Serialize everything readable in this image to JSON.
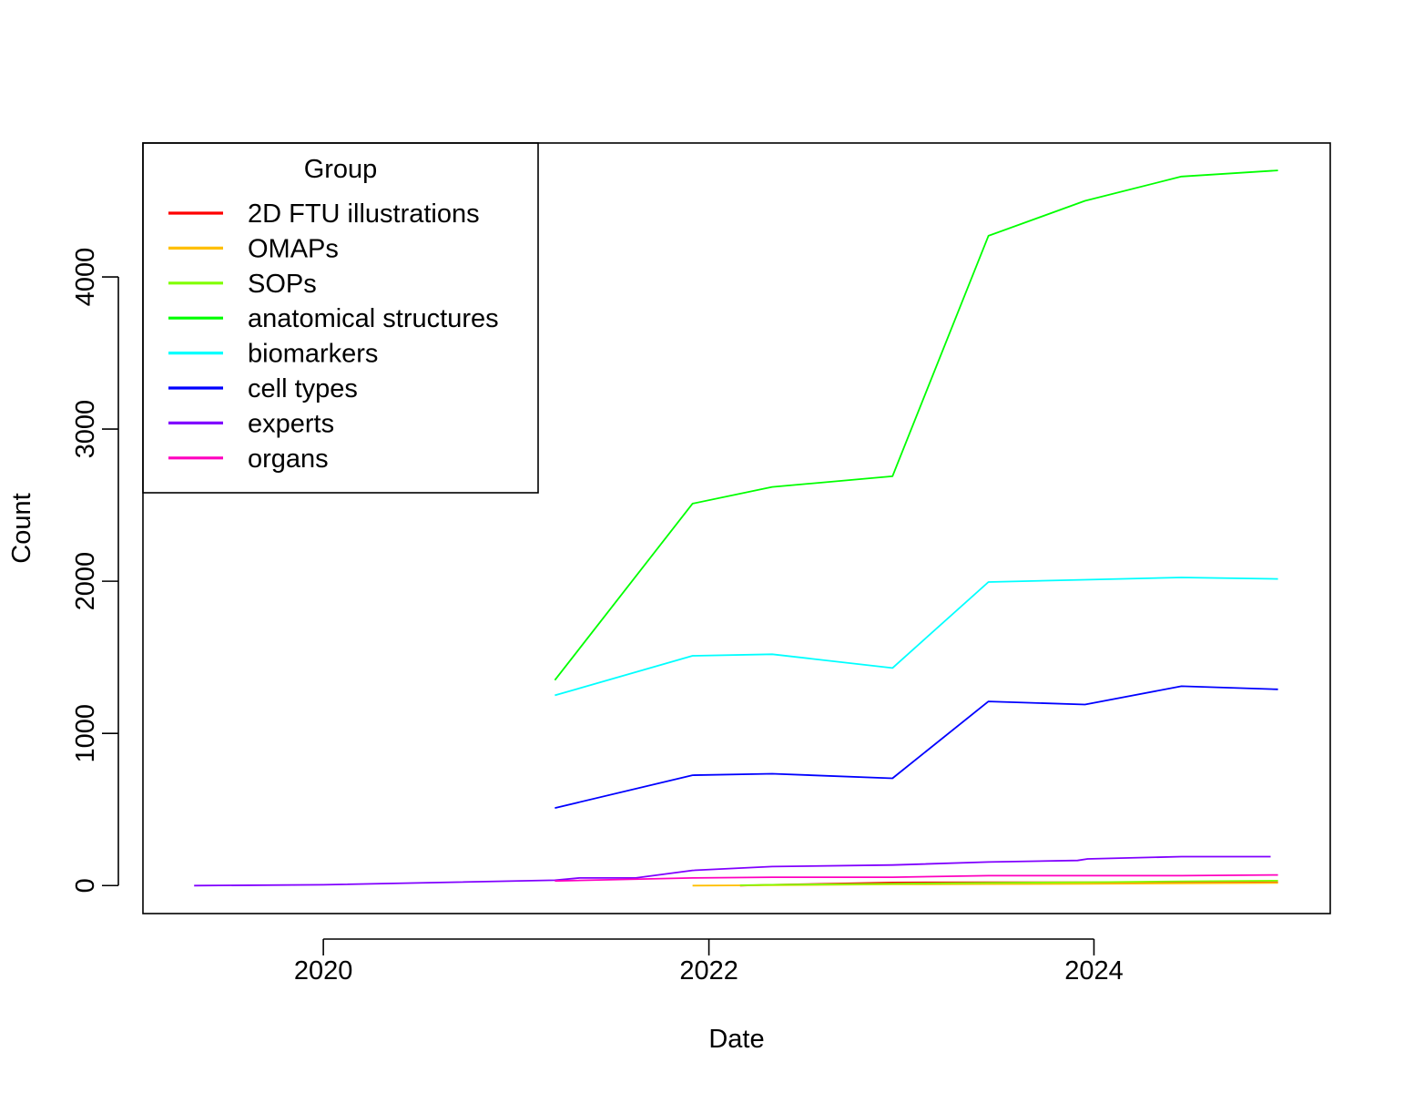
{
  "chart_data": {
    "type": "line",
    "xlabel": "Date",
    "ylabel": "Count",
    "xlim": [
      "2019-01-24",
      "2025-03-24"
    ],
    "ylim": [
      -184,
      4880
    ],
    "xticks": [
      {
        "date": "2020-01-01",
        "label": "2020"
      },
      {
        "date": "2022-01-01",
        "label": "2022"
      },
      {
        "date": "2024-01-01",
        "label": "2024"
      }
    ],
    "yticks": [
      0,
      1000,
      2000,
      3000,
      4000
    ],
    "grid": false,
    "legend": {
      "title": "Group",
      "position": "top-left"
    },
    "series": [
      {
        "name": "2D FTU illustrations",
        "color": "#FF0000",
        "points": [
          [
            "2022-03-01",
            0
          ],
          [
            "2022-05-01",
            5
          ],
          [
            "2022-12-15",
            20
          ],
          [
            "2023-06-15",
            22
          ],
          [
            "2023-12-15",
            22
          ],
          [
            "2024-06-15",
            22
          ],
          [
            "2024-12-15",
            22
          ]
        ]
      },
      {
        "name": "OMAPs",
        "color": "#FFBF00",
        "points": [
          [
            "2021-12-01",
            0
          ],
          [
            "2022-05-01",
            2
          ],
          [
            "2022-12-15",
            8
          ],
          [
            "2023-06-15",
            10
          ],
          [
            "2023-12-15",
            12
          ],
          [
            "2024-06-15",
            15
          ],
          [
            "2024-12-15",
            18
          ]
        ]
      },
      {
        "name": "SOPs",
        "color": "#80FF00",
        "points": [
          [
            "2022-03-01",
            2
          ],
          [
            "2022-05-01",
            5
          ],
          [
            "2022-12-15",
            12
          ],
          [
            "2023-06-15",
            18
          ],
          [
            "2023-12-15",
            22
          ],
          [
            "2024-06-15",
            28
          ],
          [
            "2024-12-15",
            32
          ]
        ]
      },
      {
        "name": "anatomical structures",
        "color": "#00FF00",
        "points": [
          [
            "2021-03-15",
            1350
          ],
          [
            "2021-12-01",
            2510
          ],
          [
            "2022-05-01",
            2620
          ],
          [
            "2022-12-15",
            2690
          ],
          [
            "2023-06-15",
            4270
          ],
          [
            "2023-12-15",
            4500
          ],
          [
            "2024-06-15",
            4660
          ],
          [
            "2024-12-15",
            4700
          ]
        ]
      },
      {
        "name": "biomarkers",
        "color": "#00FFFF",
        "points": [
          [
            "2021-03-15",
            1250
          ],
          [
            "2021-12-01",
            1510
          ],
          [
            "2022-05-01",
            1520
          ],
          [
            "2022-12-15",
            1430
          ],
          [
            "2023-06-15",
            1995
          ],
          [
            "2023-12-15",
            2010
          ],
          [
            "2024-06-15",
            2025
          ],
          [
            "2024-12-15",
            2015
          ]
        ]
      },
      {
        "name": "cell types",
        "color": "#0000FF",
        "points": [
          [
            "2021-03-15",
            510
          ],
          [
            "2021-12-01",
            725
          ],
          [
            "2022-05-01",
            735
          ],
          [
            "2022-12-15",
            705
          ],
          [
            "2023-06-15",
            1210
          ],
          [
            "2023-12-15",
            1190
          ],
          [
            "2024-06-15",
            1310
          ],
          [
            "2024-12-15",
            1290
          ]
        ]
      },
      {
        "name": "experts",
        "color": "#8000FF",
        "points": [
          [
            "2019-05-01",
            0
          ],
          [
            "2020-01-01",
            5
          ],
          [
            "2021-03-15",
            35
          ],
          [
            "2021-05-01",
            50
          ],
          [
            "2021-08-15",
            50
          ],
          [
            "2021-12-01",
            100
          ],
          [
            "2022-05-01",
            125
          ],
          [
            "2022-12-15",
            135
          ],
          [
            "2023-06-15",
            155
          ],
          [
            "2023-12-01",
            165
          ],
          [
            "2023-12-20",
            175
          ],
          [
            "2024-06-15",
            190
          ],
          [
            "2024-12-01",
            190
          ]
        ]
      },
      {
        "name": "organs",
        "color": "#FF00BF",
        "points": [
          [
            "2021-03-15",
            30
          ],
          [
            "2021-12-01",
            50
          ],
          [
            "2022-05-01",
            55
          ],
          [
            "2022-12-15",
            55
          ],
          [
            "2023-06-15",
            65
          ],
          [
            "2023-12-15",
            65
          ],
          [
            "2024-06-15",
            65
          ],
          [
            "2024-12-15",
            70
          ]
        ]
      }
    ]
  }
}
